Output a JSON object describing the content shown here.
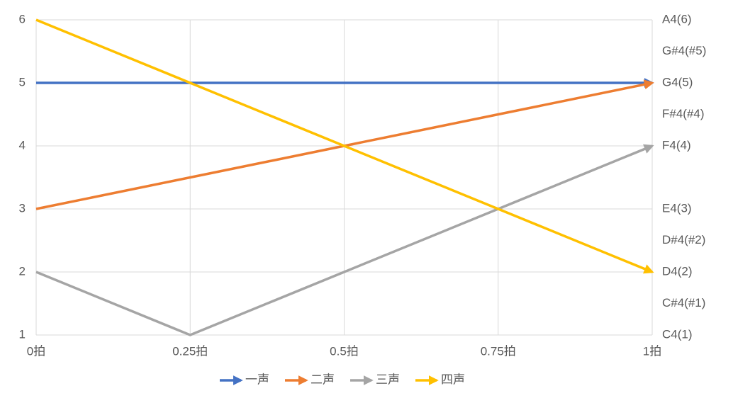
{
  "chart_data": {
    "type": "line",
    "x": [
      0,
      0.25,
      0.5,
      0.75,
      1
    ],
    "xlim": [
      0,
      1
    ],
    "xticks": [
      {
        "value": 0,
        "label": "0拍"
      },
      {
        "value": 0.25,
        "label": "0.25拍"
      },
      {
        "value": 0.5,
        "label": "0.5拍"
      },
      {
        "value": 0.75,
        "label": "0.75拍"
      },
      {
        "value": 1,
        "label": "1拍"
      }
    ],
    "ylim": [
      1,
      6
    ],
    "yticks": [
      1,
      2,
      3,
      4,
      5,
      6
    ],
    "y2lim": [
      1,
      6
    ],
    "y2ticks": [
      {
        "value": 6,
        "label": "A4(6)"
      },
      {
        "value": 5.5,
        "label": "G#4(#5)"
      },
      {
        "value": 5,
        "label": "G4(5)"
      },
      {
        "value": 4.5,
        "label": "F#4(#4)"
      },
      {
        "value": 4,
        "label": "F4(4)"
      },
      {
        "value": 3,
        "label": "E4(3)"
      },
      {
        "value": 2.5,
        "label": "D#4(#2)"
      },
      {
        "value": 2,
        "label": "D4(2)"
      },
      {
        "value": 1.5,
        "label": "C#4(#1)"
      },
      {
        "value": 1,
        "label": "C4(1)"
      }
    ],
    "grid": true,
    "legend": "bottom",
    "series": [
      {
        "name": "一声",
        "color": "#4472c4",
        "values": [
          5,
          5,
          5,
          5,
          5
        ]
      },
      {
        "name": "二声",
        "color": "#ed7d31",
        "values": [
          3,
          3.5,
          4,
          4.5,
          5
        ]
      },
      {
        "name": "三声",
        "color": "#a5a5a5",
        "values": [
          2,
          1,
          2,
          3,
          4
        ]
      },
      {
        "name": "四声",
        "color": "#ffc000",
        "values": [
          6,
          5,
          4,
          3,
          2
        ]
      }
    ]
  }
}
